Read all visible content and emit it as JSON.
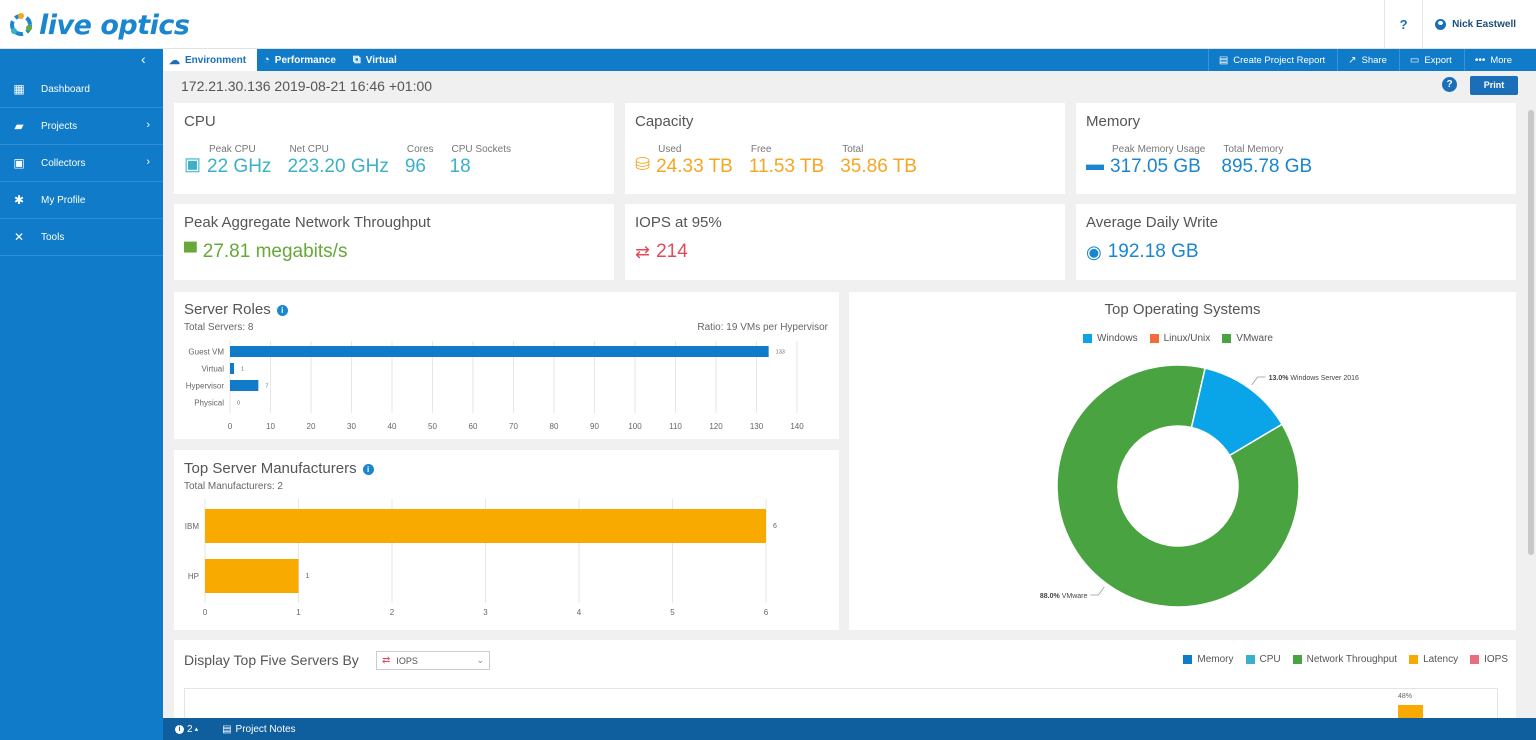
{
  "app": {
    "logo_text": "live optics"
  },
  "header": {
    "help_label": "?",
    "user_name": "Nick Eastwell"
  },
  "nav": {
    "tabs": [
      {
        "label": "Environment",
        "icon": "cloud-icon",
        "active": true
      },
      {
        "label": "Performance",
        "icon": "gauge-icon",
        "active": false
      },
      {
        "label": "Virtual",
        "icon": "virtual-icon",
        "active": false
      }
    ],
    "actions": [
      {
        "label": "Create Project Report",
        "icon": "report-icon"
      },
      {
        "label": "Share",
        "icon": "share-icon"
      },
      {
        "label": "Export",
        "icon": "export-icon"
      },
      {
        "label": "More",
        "icon": "more-icon"
      }
    ]
  },
  "sidebar": {
    "items": [
      {
        "label": "Dashboard",
        "icon": "dashboard-icon",
        "has_children": false
      },
      {
        "label": "Projects",
        "icon": "folder-icon",
        "has_children": true
      },
      {
        "label": "Collectors",
        "icon": "collector-icon",
        "has_children": true
      },
      {
        "label": "My Profile",
        "icon": "gear-icon",
        "has_children": false
      },
      {
        "label": "Tools",
        "icon": "tools-icon",
        "has_children": false
      }
    ]
  },
  "page": {
    "title": "172.21.30.136 2019-08-21 16:46 +01:00",
    "print_label": "Print",
    "help_label": "?"
  },
  "cards": {
    "cpu": {
      "title": "CPU",
      "metrics": [
        {
          "label": "Peak CPU",
          "value": "22 GHz"
        },
        {
          "label": "Net CPU",
          "value": "223.20 GHz"
        },
        {
          "label": "Cores",
          "value": "96"
        },
        {
          "label": "CPU Sockets",
          "value": "18"
        }
      ]
    },
    "capacity": {
      "title": "Capacity",
      "metrics": [
        {
          "label": "Used",
          "value": "24.33 TB"
        },
        {
          "label": "Free",
          "value": "11.53 TB"
        },
        {
          "label": "Total",
          "value": "35.86 TB"
        }
      ]
    },
    "memory": {
      "title": "Memory",
      "metrics": [
        {
          "label": "Peak Memory Usage",
          "value": "317.05 GB"
        },
        {
          "label": "Total Memory",
          "value": "895.78 GB"
        }
      ]
    },
    "network": {
      "title": "Peak Aggregate Network Throughput",
      "value": "27.81 megabits/s"
    },
    "iops": {
      "title": "IOPS at 95%",
      "value": "214"
    },
    "daily_write": {
      "title": "Average Daily Write",
      "value": "192.18 GB"
    }
  },
  "colors": {
    "cpu": "#3ab1c7",
    "capacity": "#f5a623",
    "memory": "#1a86cf",
    "network": "#67a83a",
    "iops": "#e04b5b",
    "bar_blue": "#0f7bc9",
    "bar_orange": "#f9aa00",
    "donut_green": "#4aa341",
    "donut_blue": "#0aa4e8"
  },
  "server_roles": {
    "title": "Server Roles",
    "subtitle": "Total Servers: 8",
    "ratio": "Ratio: 19 VMs per Hypervisor"
  },
  "manufacturers": {
    "title": "Top Server Manufacturers",
    "subtitle": "Total Manufacturers: 2"
  },
  "os": {
    "title": "Top Operating Systems",
    "legend": [
      {
        "label": "Windows",
        "color": "#0aa4e8"
      },
      {
        "label": "Linux/Unix",
        "color": "#f26b3a"
      },
      {
        "label": "VMware",
        "color": "#4aa341"
      }
    ]
  },
  "top_five": {
    "title": "Display Top Five Servers By",
    "selected": "IOPS",
    "legend": [
      {
        "label": "Memory",
        "color": "#0f7bc9"
      },
      {
        "label": "CPU",
        "color": "#3ab1c7"
      },
      {
        "label": "Network Throughput",
        "color": "#4aa341"
      },
      {
        "label": "Latency",
        "color": "#f9aa00"
      },
      {
        "label": "IOPS",
        "color": "#e04b5b"
      }
    ],
    "bar_label": "48%"
  },
  "footer": {
    "notif_count": "2",
    "project_notes": "Project Notes"
  },
  "chart_data": [
    {
      "type": "bar",
      "orientation": "horizontal",
      "title": "Server Roles",
      "categories": [
        "Guest VM",
        "Virtual",
        "Hypervisor",
        "Physical"
      ],
      "values": [
        133,
        1,
        7,
        0
      ],
      "xlim": [
        0,
        140
      ],
      "xticks": [
        0,
        10,
        20,
        30,
        40,
        50,
        60,
        70,
        80,
        90,
        100,
        110,
        120,
        130,
        140
      ],
      "grid": true
    },
    {
      "type": "bar",
      "orientation": "horizontal",
      "title": "Top Server Manufacturers",
      "categories": [
        "IBM",
        "HP"
      ],
      "values": [
        6,
        1
      ],
      "xlim": [
        0,
        6
      ],
      "xticks": [
        0,
        1,
        2,
        3,
        4,
        5,
        6
      ],
      "grid": true
    },
    {
      "type": "pie",
      "title": "Top Operating Systems",
      "slices": [
        {
          "label": "VMware",
          "value": 88.0,
          "display": "88.0%"
        },
        {
          "label": "Windows Server 2016",
          "value": 13.0,
          "display": "13.0%"
        }
      ],
      "legend_position": "top"
    }
  ]
}
